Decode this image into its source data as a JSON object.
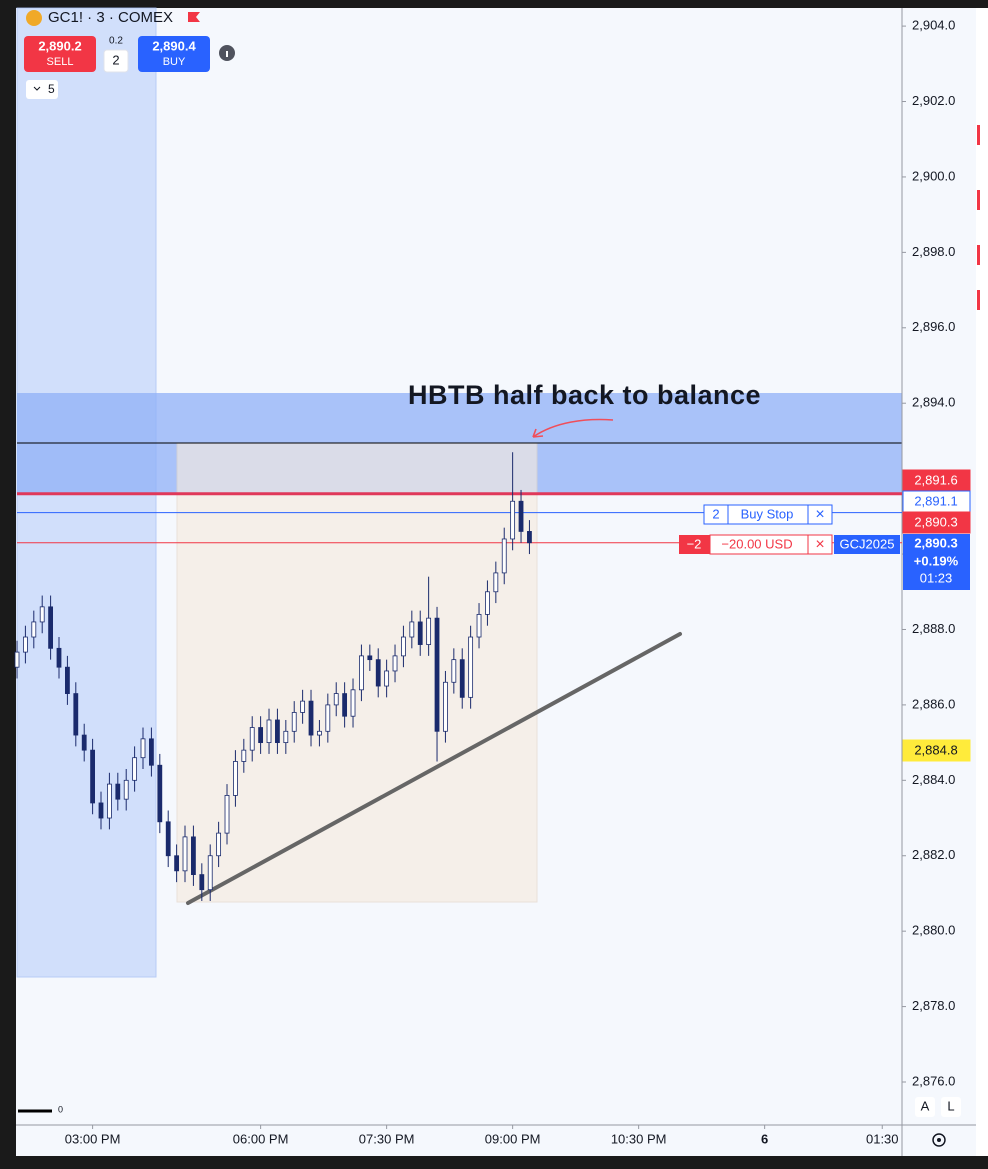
{
  "header": {
    "symbol": "GC1! · 3 · COMEX",
    "sell_price": "2,890.2",
    "sell_label": "SELL",
    "spread": "0.2",
    "quantity": "2",
    "buy_price": "2,890.4",
    "buy_label": "BUY",
    "collapse_count": "5"
  },
  "chart_data": {
    "type": "candlestick",
    "annotation": "HBTB half back to balance",
    "x": [
      0,
      2,
      4,
      6,
      8,
      10,
      12,
      14,
      16,
      18,
      20,
      22,
      24,
      26,
      28,
      30,
      32,
      34,
      36,
      38,
      40,
      42,
      44,
      46,
      48,
      50,
      52,
      54,
      56,
      58,
      60,
      62,
      64,
      66,
      68,
      70,
      72,
      74,
      76,
      78,
      80,
      82,
      84,
      86,
      88,
      90,
      92,
      94,
      96,
      98,
      100,
      102,
      104,
      106,
      108,
      110,
      112,
      114,
      116,
      118,
      120,
      122
    ],
    "open": [
      2887.0,
      2887.4,
      2887.8,
      2888.2,
      2888.6,
      2887.5,
      2887.0,
      2886.3,
      2885.2,
      2884.8,
      2883.4,
      2883.0,
      2883.9,
      2883.5,
      2884.0,
      2884.6,
      2885.1,
      2884.4,
      2882.9,
      2882.0,
      2881.6,
      2882.5,
      2881.5,
      2881.1,
      2882.0,
      2882.6,
      2883.6,
      2884.5,
      2884.8,
      2885.4,
      2885.0,
      2885.6,
      2885.0,
      2885.3,
      2885.8,
      2886.1,
      2885.2,
      2885.3,
      2886.0,
      2886.3,
      2885.7,
      2886.4,
      2887.3,
      2887.2,
      2886.5,
      2886.9,
      2887.3,
      2887.8,
      2888.2,
      2887.6,
      2888.3,
      2885.3,
      2886.6,
      2887.2,
      2886.2,
      2887.8,
      2888.4,
      2889.0,
      2889.5,
      2890.4,
      2891.4,
      2890.6
    ],
    "high": [
      2887.7,
      2888.1,
      2888.5,
      2888.9,
      2888.9,
      2887.8,
      2887.3,
      2886.6,
      2885.5,
      2885.1,
      2883.7,
      2884.2,
      2884.2,
      2884.3,
      2884.9,
      2885.4,
      2885.4,
      2884.7,
      2883.2,
      2882.3,
      2882.8,
      2882.8,
      2881.8,
      2882.3,
      2882.9,
      2883.9,
      2884.8,
      2885.1,
      2885.7,
      2885.7,
      2885.9,
      2885.9,
      2885.6,
      2886.1,
      2886.4,
      2886.4,
      2885.6,
      2886.3,
      2886.6,
      2886.6,
      2886.7,
      2887.6,
      2887.6,
      2887.5,
      2887.2,
      2887.6,
      2888.1,
      2888.5,
      2888.5,
      2889.4,
      2888.6,
      2886.9,
      2887.5,
      2887.5,
      2888.1,
      2888.7,
      2889.3,
      2889.8,
      2890.7,
      2892.7,
      2891.7,
      2890.9
    ],
    "low": [
      2886.7,
      2887.1,
      2887.5,
      2887.9,
      2887.2,
      2886.7,
      2886.0,
      2884.9,
      2884.5,
      2883.1,
      2882.7,
      2882.7,
      2883.2,
      2883.2,
      2883.7,
      2884.3,
      2884.1,
      2882.6,
      2881.7,
      2881.3,
      2881.3,
      2881.2,
      2880.8,
      2880.8,
      2881.7,
      2882.3,
      2883.3,
      2884.2,
      2884.5,
      2884.7,
      2884.7,
      2884.7,
      2884.7,
      2885.0,
      2885.5,
      2884.9,
      2884.9,
      2885.0,
      2885.7,
      2885.4,
      2885.4,
      2886.1,
      2886.9,
      2886.2,
      2886.2,
      2886.6,
      2887.0,
      2887.5,
      2887.3,
      2887.3,
      2884.5,
      2885.0,
      2886.3,
      2885.9,
      2885.9,
      2887.5,
      2888.1,
      2888.7,
      2889.2,
      2890.1,
      2890.3,
      2890.0
    ],
    "close": [
      2887.4,
      2887.8,
      2888.2,
      2888.6,
      2887.5,
      2887.0,
      2886.3,
      2885.2,
      2884.8,
      2883.4,
      2883.0,
      2883.9,
      2883.5,
      2884.0,
      2884.6,
      2885.1,
      2884.4,
      2882.9,
      2882.0,
      2881.6,
      2882.5,
      2881.5,
      2881.1,
      2882.0,
      2882.6,
      2883.6,
      2884.5,
      2884.8,
      2885.4,
      2885.0,
      2885.6,
      2885.0,
      2885.3,
      2885.8,
      2886.1,
      2885.2,
      2885.3,
      2886.0,
      2886.3,
      2885.7,
      2886.4,
      2887.3,
      2887.2,
      2886.5,
      2886.9,
      2887.3,
      2887.8,
      2888.2,
      2887.6,
      2888.3,
      2885.3,
      2886.6,
      2887.2,
      2886.2,
      2887.8,
      2888.4,
      2889.0,
      2889.5,
      2890.4,
      2891.4,
      2890.6,
      2890.3
    ],
    "xlim": [
      0,
      210.7
    ],
    "xticks": [
      {
        "value": 18,
        "label": "03:00 PM"
      },
      {
        "value": 58,
        "label": "06:00 PM"
      },
      {
        "value": 88,
        "label": "07:30 PM"
      },
      {
        "value": 118,
        "label": "09:00 PM"
      },
      {
        "value": 148,
        "label": "10:30 PM"
      },
      {
        "value": 178,
        "label": "6"
      },
      {
        "value": 206,
        "label": "01:30"
      }
    ],
    "ylim": [
      2874.86,
      2904.48
    ],
    "yticks": [
      {
        "value": 2876,
        "label": "2,876.0"
      },
      {
        "value": 2878,
        "label": "2,878.0"
      },
      {
        "value": 2880,
        "label": "2,880.0"
      },
      {
        "value": 2882,
        "label": "2,882.0"
      },
      {
        "value": 2884,
        "label": "2,884.0"
      },
      {
        "value": 2886,
        "label": "2,886.0"
      },
      {
        "value": 2888,
        "label": "2,888.0"
      },
      {
        "value": 2890,
        "label": "2,890.0"
      },
      {
        "value": 2892,
        "label": "2,892.0"
      },
      {
        "value": 2894,
        "label": "2,894.0"
      },
      {
        "value": 2896,
        "label": "2,896.0"
      },
      {
        "value": 2898,
        "label": "2,898.0"
      },
      {
        "value": 2900,
        "label": "2,900.0"
      },
      {
        "value": 2902,
        "label": "2,902.0"
      },
      {
        "value": 2904,
        "label": "2,904.0"
      }
    ],
    "up_color": "#ffffff",
    "down_color": "#1a2a6c"
  },
  "price_tags": [
    {
      "value": 2891.6,
      "label": "2,891.6"
    },
    {
      "value": 2891.1,
      "label": "2,891.1"
    },
    {
      "value": 2890.3,
      "label": "2,890.3"
    },
    {
      "value": 2884.8,
      "label": "2,884.8"
    }
  ],
  "last_price": {
    "value": 2890.3,
    "label": "2,890.3",
    "change": "+0.19%",
    "countdown": "01:23"
  },
  "orders": [
    {
      "quantity": "2",
      "label": "Buy Stop",
      "close": "×"
    },
    {
      "quantity": "−2",
      "label": "−20.00 USD",
      "close": "×",
      "symbol": "GCJ2025"
    }
  ],
  "axis_buttons": [
    "A",
    "L"
  ],
  "volume_label": "0"
}
